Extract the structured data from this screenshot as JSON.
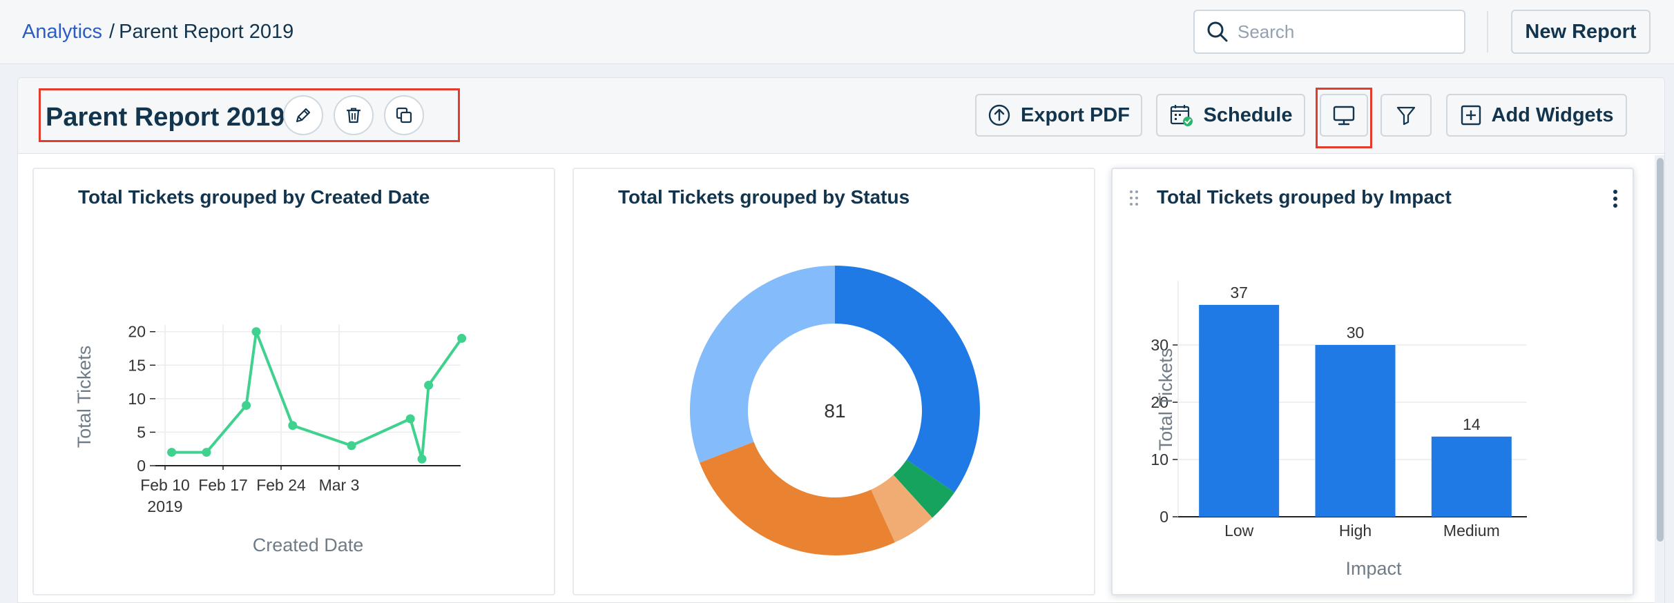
{
  "breadcrumb": {
    "parent": "Analytics",
    "separator": "/",
    "current": "Parent Report 2019"
  },
  "search": {
    "placeholder": "Search",
    "value": ""
  },
  "header": {
    "new_report_label": "New Report"
  },
  "report": {
    "title": "Parent Report 2019",
    "actions": {
      "export_label": "Export PDF",
      "schedule_label": "Schedule",
      "add_widgets_label": "Add Widgets"
    }
  },
  "colors": {
    "accent": "#2c5cc5",
    "highlight": "#e53b2c",
    "line": "#3fd18e",
    "bar": "#1f7ae5"
  },
  "widgets": [
    {
      "title": "Total Tickets grouped by Created Date"
    },
    {
      "title": "Total Tickets grouped by Status",
      "center_label": "81"
    },
    {
      "title": "Total Tickets grouped by Impact"
    }
  ],
  "chart_data": [
    {
      "type": "line",
      "title": "Total Tickets grouped by Created Date",
      "xlabel": "Created Date",
      "ylabel": "Total Tickets",
      "x_tick_labels": [
        "Feb 10",
        "Feb 17",
        "Feb 24",
        "Mar 3"
      ],
      "x_tick_sublabel": "2019",
      "x_day_range": [
        0,
        28
      ],
      "ylim": [
        0,
        21
      ],
      "y_ticks": [
        0,
        5,
        10,
        15,
        20
      ],
      "x_days": [
        0.8,
        5,
        9.8,
        11,
        15.4,
        22.5,
        29.6,
        31,
        31.8,
        35.8
      ],
      "series": [
        {
          "name": "Total Tickets",
          "values": [
            2,
            2,
            9,
            20,
            6,
            3,
            7,
            1,
            12,
            19
          ]
        }
      ],
      "grid": true
    },
    {
      "type": "pie",
      "title": "Total Tickets grouped by Status",
      "total": 81,
      "slices": [
        {
          "value": 28,
          "color": "#1f7ae5"
        },
        {
          "value": 3,
          "color": "#16a35e"
        },
        {
          "value": 4,
          "color": "#f0ac73"
        },
        {
          "value": 21,
          "color": "#e98332"
        },
        {
          "value": 25,
          "color": "#84bbfb"
        }
      ]
    },
    {
      "type": "bar",
      "title": "Total Tickets grouped by Impact",
      "xlabel": "Impact",
      "ylabel": "Total Tickets",
      "categories": [
        "Low",
        "High",
        "Medium"
      ],
      "values": [
        37,
        30,
        14
      ],
      "ylim": [
        0,
        40
      ],
      "y_ticks": [
        0,
        10,
        20,
        30
      ],
      "grid": true
    }
  ]
}
